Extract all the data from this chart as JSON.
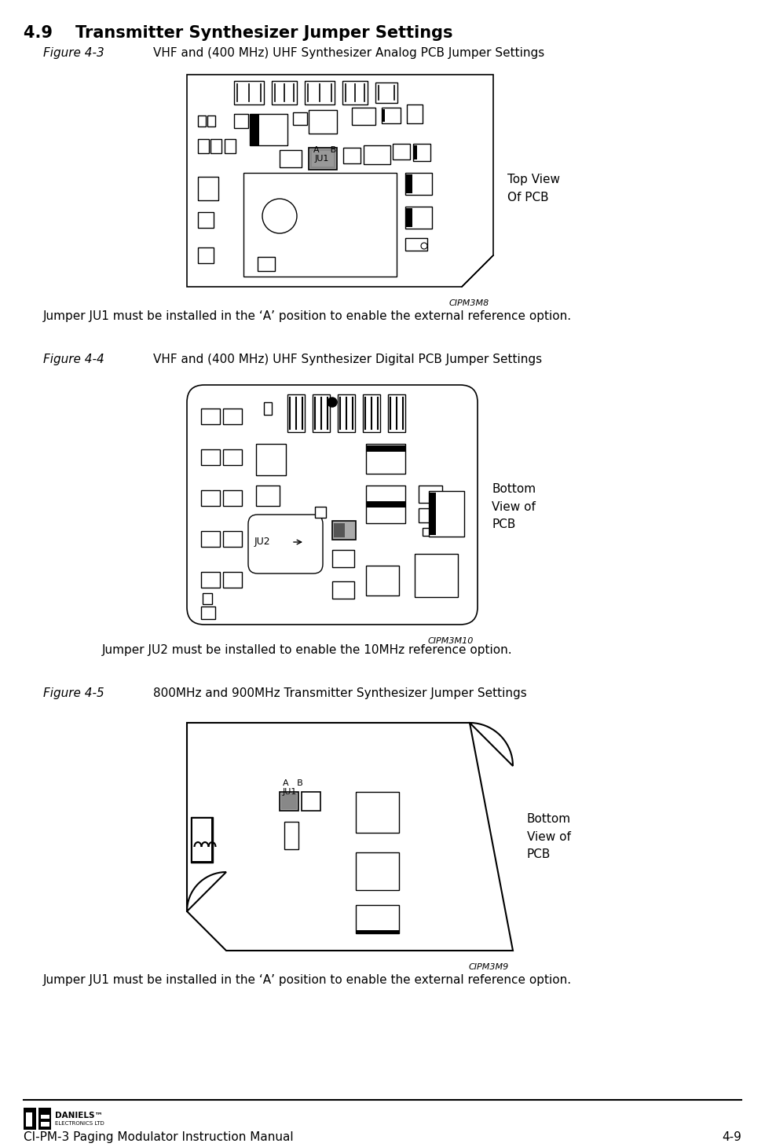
{
  "title_section": "4.9    Transmitter Synthesizer Jumper Settings",
  "fig3_caption_a": "Figure 4-3",
  "fig3_caption_b": "VHF and (400 MHz) UHF Synthesizer Analog PCB Jumper Settings",
  "fig4_caption_a": "Figure 4-4",
  "fig4_caption_b": "VHF and (400 MHz) UHF Synthesizer Digital PCB Jumper Settings",
  "fig5_caption_a": "Figure 4-5",
  "fig5_caption_b": "800MHz and 900MHz Transmitter Synthesizer Jumper Settings",
  "fig3_label": "CIPM3M8",
  "fig4_label": "CIPM3M10",
  "fig5_label": "CIPM3M9",
  "fig3_side_label": "Top View\nOf PCB",
  "fig4_side_label": "Bottom\nView of\nPCB",
  "fig5_side_label": "Bottom\nView of\nPCB",
  "text1": "Jumper JU1 must be installed in the ‘A’ position to enable the external reference option.",
  "text2": "Jumper JU2 must be installed to enable the 10MHz reference option.",
  "text3": "Jumper JU1 must be installed in the ‘A’ position to enable the external reference option.",
  "footer_left": "CI-PM-3 Paging Modulator Instruction Manual",
  "footer_right": "4-9",
  "bg_color": "#ffffff"
}
